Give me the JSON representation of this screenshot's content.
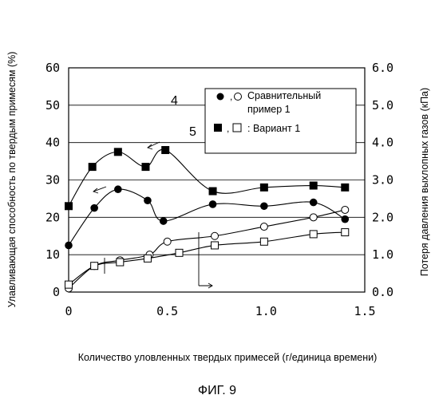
{
  "figure_caption": "ФИГ. 9",
  "chart_data": {
    "type": "line",
    "xlabel": "Количество уловленных твердых примесей  (г/единица времени)",
    "ylabel_left": "Улавливающая способность по твердым примесям (%)",
    "ylabel_right": "Потеря давления выхлопных газов (кПа)",
    "x_ticks": [
      "0",
      "0.5",
      "1.0",
      "1.5"
    ],
    "x_tick_values": [
      0,
      0.5,
      1.0,
      1.5
    ],
    "xlim": [
      0,
      1.5
    ],
    "left_ticks": [
      "0",
      "10",
      "20",
      "30",
      "40",
      "50",
      "60"
    ],
    "left_tick_values": [
      0,
      10,
      20,
      30,
      40,
      50,
      60
    ],
    "ylim_left": [
      0,
      60
    ],
    "right_ticks": [
      "0.0",
      "1.0",
      "2.0",
      "3.0",
      "4.0",
      "5.0",
      "6.0"
    ],
    "right_tick_values": [
      0,
      1,
      2,
      3,
      4,
      5,
      6
    ],
    "ylim_right": [
      0,
      6
    ],
    "grid": "horizontal",
    "legend": [
      {
        "number": "4",
        "symbols": ",",
        "text_lines": [
          "Сравнительный",
          "пример 1"
        ]
      },
      {
        "number": "5",
        "symbols": ",",
        "text_lines": [
          "Вариант 1"
        ]
      }
    ],
    "series": [
      {
        "marker": "filled-circle",
        "axis": "left",
        "x": [
          0.0,
          0.13,
          0.25,
          0.4,
          0.48,
          0.73,
          0.99,
          1.24,
          1.4
        ],
        "y": [
          12.5,
          22.5,
          27.5,
          24.5,
          19.0,
          23.5,
          23.0,
          24.0,
          19.5
        ]
      },
      {
        "marker": "filled-square",
        "axis": "left",
        "x": [
          0.0,
          0.12,
          0.25,
          0.39,
          0.49,
          0.73,
          0.99,
          1.24,
          1.4
        ],
        "y": [
          23.0,
          33.5,
          37.5,
          33.5,
          38.0,
          27.0,
          28.0,
          28.5,
          28.0
        ]
      },
      {
        "marker": "open-circle",
        "axis": "right",
        "x": [
          0.0,
          0.13,
          0.26,
          0.41,
          0.5,
          0.74,
          0.99,
          1.24,
          1.4
        ],
        "y": [
          0.1,
          0.7,
          0.85,
          1.0,
          1.35,
          1.5,
          1.75,
          2.0,
          2.2
        ]
      },
      {
        "marker": "open-square",
        "axis": "right",
        "x": [
          0.0,
          0.13,
          0.26,
          0.4,
          0.56,
          0.74,
          0.99,
          1.24,
          1.4
        ],
        "y": [
          0.2,
          0.7,
          0.8,
          0.9,
          1.05,
          1.25,
          1.35,
          1.55,
          1.6
        ]
      }
    ]
  }
}
